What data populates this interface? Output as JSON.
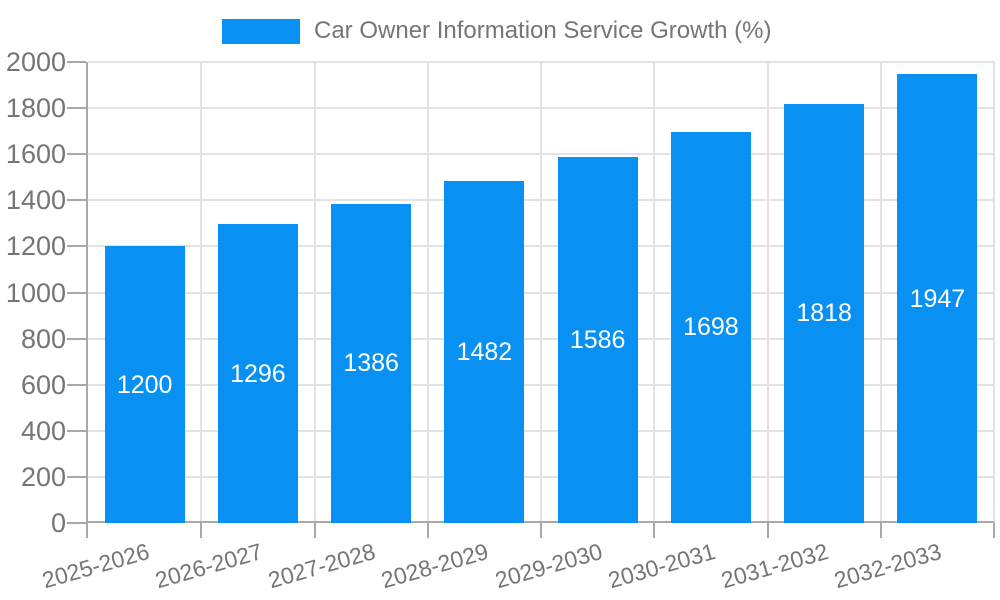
{
  "legend": {
    "label": "Car Owner Information Service Growth (%)"
  },
  "chart_data": {
    "type": "bar",
    "title": "Car Owner Information Service Growth (%)",
    "categories": [
      "2025-2026",
      "2026-2027",
      "2027-2028",
      "2028-2029",
      "2029-2030",
      "2030-2031",
      "2031-2032",
      "2032-2033"
    ],
    "values": [
      1200,
      1296,
      1386,
      1482,
      1586,
      1698,
      1818,
      1947
    ],
    "bar_value_labels": [
      "1200",
      "1296",
      "1386",
      "1482",
      "1586",
      "1698",
      "1818",
      "1947"
    ],
    "xlabel": "",
    "ylabel": "",
    "ylim": [
      0,
      2000
    ],
    "yticks": [
      0,
      200,
      400,
      600,
      800,
      1000,
      1200,
      1400,
      1600,
      1800,
      2000
    ],
    "grid": true,
    "legend_position": "top",
    "x_label_rotation_deg": -16,
    "colors": {
      "bar": "#0990f3",
      "bar_label": "#ffffff",
      "grid": "#e2e2e2",
      "axis": "#a8a8a8",
      "tick_label": "#757575",
      "background": "#ffffff"
    }
  }
}
